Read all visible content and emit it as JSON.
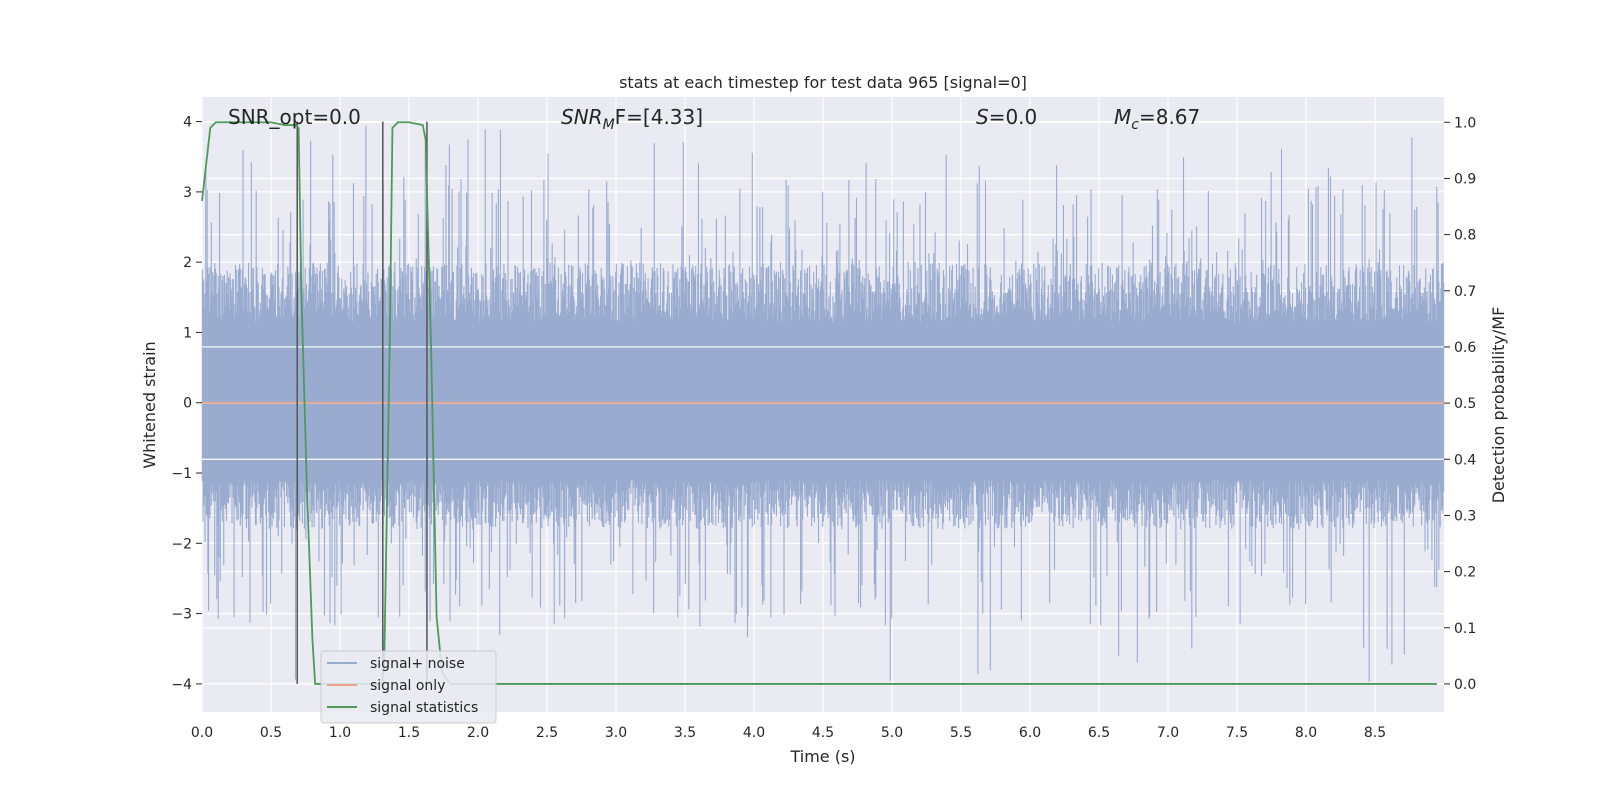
{
  "chart_data": {
    "type": "line",
    "title": "stats at each timestep for test data 965 [signal=0]",
    "xlabel": "Time (s)",
    "ylabel": "Whitened strain",
    "y2label": "Detection probability/MF",
    "xlim": [
      0.0,
      9.0
    ],
    "ylim": [
      -4.4,
      4.35
    ],
    "y2lim": [
      -0.05,
      1.045
    ],
    "x_ticks": [
      0.0,
      0.5,
      1.0,
      1.5,
      2.0,
      2.5,
      3.0,
      3.5,
      4.0,
      4.5,
      5.0,
      5.5,
      6.0,
      6.5,
      7.0,
      7.5,
      8.0,
      8.5
    ],
    "x_tick_labels": [
      "0.0",
      "0.5",
      "1.0",
      "1.5",
      "2.0",
      "2.5",
      "3.0",
      "3.5",
      "4.0",
      "4.5",
      "5.0",
      "5.5",
      "6.0",
      "6.5",
      "7.0",
      "7.5",
      "8.0",
      "8.5"
    ],
    "y_ticks": [
      4,
      3,
      2,
      1,
      0,
      -1,
      -2,
      -3,
      -4
    ],
    "y_tick_labels": [
      "4",
      "3",
      "2",
      "1",
      "0",
      "−1",
      "−2",
      "−3",
      "−4"
    ],
    "y2_ticks": [
      1.0,
      0.9,
      0.8,
      0.7,
      0.6,
      0.5,
      0.4,
      0.3,
      0.2,
      0.1,
      0.0
    ],
    "y2_tick_labels": [
      "1.0",
      "0.9",
      "0.8",
      "0.7",
      "0.6",
      "0.5",
      "0.4",
      "0.3",
      "0.2",
      "0.1",
      "0.0"
    ],
    "annotations": {
      "snr_opt": "SNR_opt=0.0",
      "snr_mf_main": "SNR",
      "snr_mf_sub": "M",
      "snr_mf_rest": "F=[4.33]",
      "s_main": "S",
      "s_rest": "=0.0",
      "mc_main": "M",
      "mc_sub": "c",
      "mc_rest": "=8.67"
    },
    "legend": {
      "position": "lower-left",
      "entries": [
        "signal+ noise",
        "signal only",
        "signal statistics"
      ]
    },
    "colors": {
      "noise": "#9aabd0",
      "signal": "#e8a58c",
      "stats": "#4e9a5a",
      "vlines": "#555555",
      "background": "#eaeaf2"
    },
    "noise_series": {
      "name": "signal+ noise",
      "n_samples": 1800,
      "typical_max": 2.0,
      "typical_min": -1.8,
      "peak_max": 3.95,
      "peak_min": -4.0
    },
    "signal_series": {
      "name": "signal only",
      "value": 0.0
    },
    "stats_series": {
      "name": "signal statistics",
      "x": [
        0.0,
        0.06,
        0.1,
        0.2,
        0.3,
        0.4,
        0.5,
        0.6,
        0.68,
        0.7,
        0.72,
        0.76,
        0.8,
        0.82,
        1.3,
        1.32,
        1.36,
        1.38,
        1.42,
        1.5,
        1.6,
        1.62,
        1.66,
        1.7,
        1.74,
        1.8,
        2.0,
        3.0,
        4.0,
        5.0,
        6.0,
        7.0,
        8.0,
        8.95
      ],
      "y": [
        0.86,
        0.99,
        1.0,
        1.0,
        1.0,
        1.0,
        1.0,
        0.995,
        0.995,
        0.99,
        0.7,
        0.35,
        0.08,
        0.0,
        0.0,
        0.03,
        0.6,
        0.99,
        1.0,
        1.0,
        0.995,
        0.97,
        0.6,
        0.12,
        0.02,
        0.0,
        0.0,
        0.0,
        0.0,
        0.0,
        0.0,
        0.0,
        0.0,
        0.0
      ]
    },
    "vlines": [
      {
        "x": 0.69,
        "y_from": -4.0,
        "y_to": 4.0
      },
      {
        "x": 1.31,
        "y_from": -4.0,
        "y_to": 4.0
      },
      {
        "x": 1.63,
        "y_from": -4.0,
        "y_to": 4.0
      }
    ]
  }
}
